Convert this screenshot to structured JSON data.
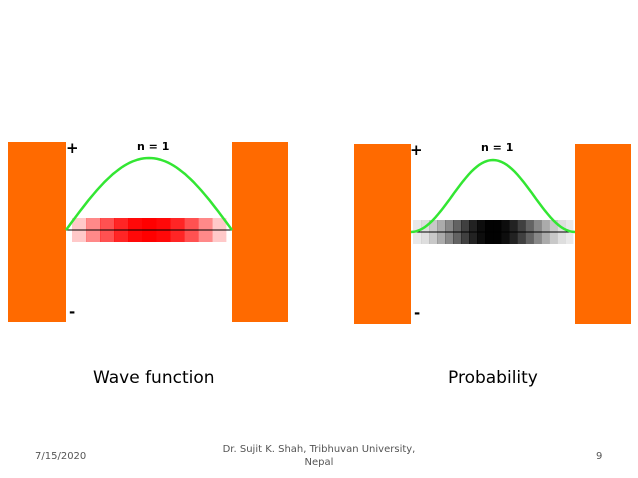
{
  "colors": {
    "wall": "#ff6a00",
    "curve": "#33e633",
    "wave_band": "#ff0000",
    "prob_band": "#000000",
    "axis": "#000000"
  },
  "panels": [
    {
      "id": "wave",
      "state_label": "n = 1",
      "plus": "+",
      "minus": "-",
      "caption": "Wave function",
      "curve": "sine",
      "band_style": "red-gradient"
    },
    {
      "id": "probability",
      "state_label": "n = 1",
      "plus": "+",
      "minus": "-",
      "caption": "Probability",
      "curve": "sine-squared",
      "band_style": "black-gradient"
    }
  ],
  "footer": {
    "date": "7/15/2020",
    "author_line1": "Dr. Sujit K. Shah, Tribhuvan University,",
    "author_line2": "Nepal",
    "page_number": "9"
  }
}
